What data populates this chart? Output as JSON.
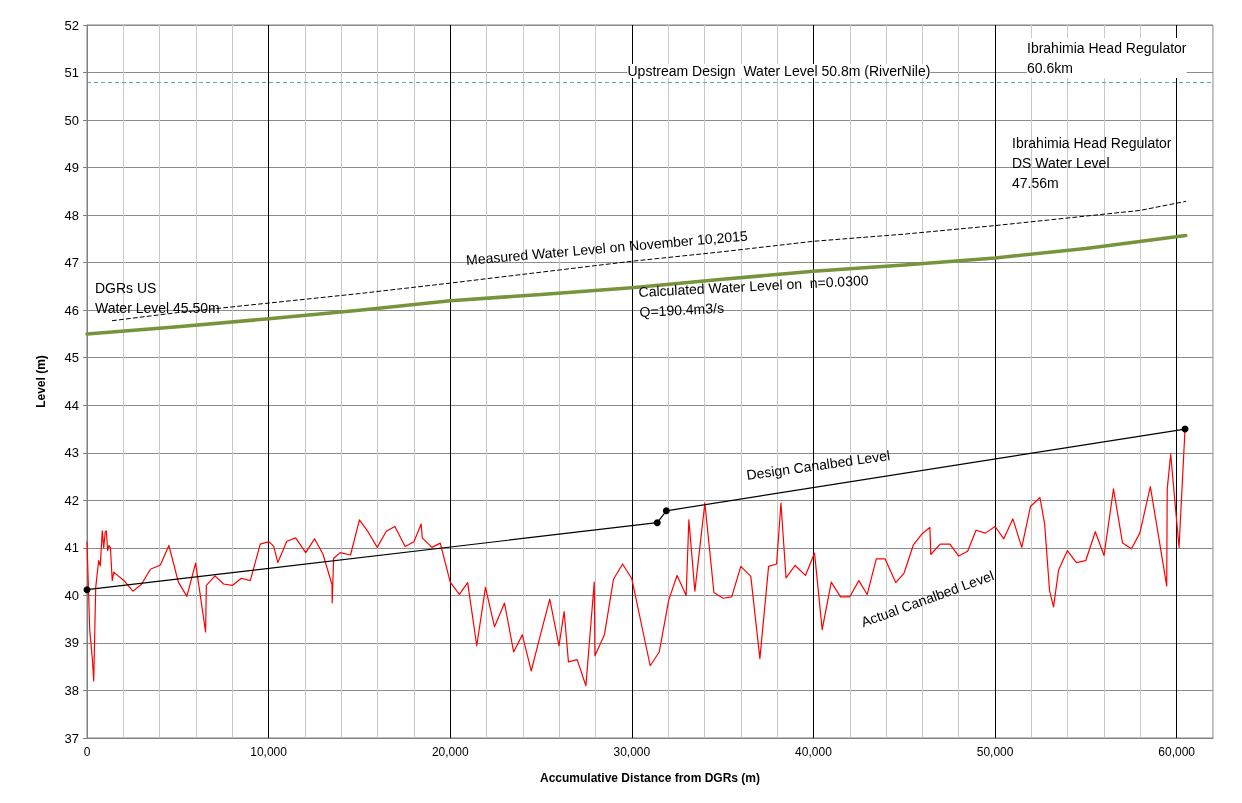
{
  "chart_data": {
    "type": "line",
    "xlabel": "Accumulative Distance from DGRs (m)",
    "ylabel": "Level (m)",
    "xlim": [
      0,
      62000
    ],
    "ylim": [
      37,
      52
    ],
    "xticks": [
      {
        "value": 0,
        "label": "0"
      },
      {
        "value": 2000,
        "label": null
      },
      {
        "value": 4000,
        "label": null
      },
      {
        "value": 6000,
        "label": null
      },
      {
        "value": 8000,
        "label": null
      },
      {
        "value": 10000,
        "label": "10,000"
      },
      {
        "value": 12000,
        "label": null
      },
      {
        "value": 14000,
        "label": null
      },
      {
        "value": 16000,
        "label": null
      },
      {
        "value": 18000,
        "label": null
      },
      {
        "value": 20000,
        "label": "20,000"
      },
      {
        "value": 22000,
        "label": null
      },
      {
        "value": 24000,
        "label": null
      },
      {
        "value": 26000,
        "label": null
      },
      {
        "value": 28000,
        "label": null
      },
      {
        "value": 30000,
        "label": "30,000"
      },
      {
        "value": 32000,
        "label": null
      },
      {
        "value": 34000,
        "label": null
      },
      {
        "value": 36000,
        "label": null
      },
      {
        "value": 38000,
        "label": null
      },
      {
        "value": 40000,
        "label": "40,000"
      },
      {
        "value": 42000,
        "label": null
      },
      {
        "value": 44000,
        "label": null
      },
      {
        "value": 46000,
        "label": null
      },
      {
        "value": 48000,
        "label": null
      },
      {
        "value": 50000,
        "label": "50,000"
      },
      {
        "value": 52000,
        "label": null
      },
      {
        "value": 54000,
        "label": null
      },
      {
        "value": 56000,
        "label": null
      },
      {
        "value": 58000,
        "label": null
      },
      {
        "value": 60000,
        "label": "60,000"
      },
      {
        "value": 62000,
        "label": null
      }
    ],
    "yticks": [
      37,
      38,
      39,
      40,
      41,
      42,
      43,
      44,
      45,
      46,
      47,
      48,
      49,
      50,
      51,
      52
    ],
    "grid": true,
    "series": [
      {
        "color": "#ff0000",
        "marker": "none",
        "line_style": "solid",
        "x": [
          0,
          150,
          300,
          370,
          480,
          640,
          730,
          840,
          920,
          1000,
          1060,
          1140,
          1210,
          1290,
          1390,
          1470,
          2040,
          2530,
          2990,
          3490,
          4040,
          4510,
          5030,
          5500,
          5980,
          6530,
          6570,
          7050,
          7520,
          8000,
          8500,
          8990,
          9540,
          10020,
          10280,
          10510,
          11000,
          11490,
          12040,
          12530,
          12990,
          13490,
          13500,
          13580,
          13940,
          14510,
          15000,
          15490,
          15980,
          16480,
          16950,
          17520,
          18000,
          18400,
          18460,
          18990,
          19450,
          20000,
          20500,
          20960,
          21460,
          21940,
          22440,
          22990,
          23490,
          23970,
          24460,
          24960,
          25480,
          25990,
          26270,
          26510,
          26990,
          27470,
          27930,
          27970,
          28490,
          28990,
          29490,
          30000,
          31010,
          31510,
          32030,
          32490,
          32990,
          33140,
          33470,
          34020,
          34520,
          35020,
          35500,
          36000,
          36550,
          37050,
          37530,
          37970,
          38210,
          38490,
          38990,
          39560,
          40060,
          40480,
          40980,
          41490,
          42000,
          42500,
          42960,
          43460,
          43940,
          44530,
          44990,
          45510,
          45970,
          46410,
          46460,
          46980,
          47510,
          47990,
          48490,
          48950,
          49470,
          50000,
          50480,
          50980,
          51470,
          51950,
          52470,
          52730,
          53000,
          53220,
          53500,
          53980,
          54480,
          54990,
          55520,
          56000,
          56520,
          57020,
          57510,
          57970,
          58550,
          59450,
          59480,
          59670,
          60130,
          60460
        ],
        "values": [
          41.12,
          39.27,
          38.64,
          38.2,
          40.17,
          40.73,
          40.62,
          41.36,
          41.0,
          41.33,
          41.36,
          40.94,
          41.05,
          41.0,
          40.31,
          40.49,
          40.31,
          40.09,
          40.23,
          40.55,
          40.64,
          41.05,
          40.28,
          39.98,
          40.68,
          39.23,
          40.21,
          40.41,
          40.24,
          40.21,
          40.36,
          40.31,
          41.08,
          41.13,
          41.03,
          40.69,
          41.14,
          41.21,
          40.9,
          41.19,
          40.87,
          40.23,
          39.84,
          40.78,
          40.9,
          40.85,
          41.59,
          41.33,
          41.01,
          41.35,
          41.45,
          41.03,
          41.13,
          41.5,
          41.21,
          41.01,
          41.1,
          40.28,
          40.02,
          40.27,
          38.94,
          40.17,
          39.34,
          39.84,
          38.81,
          39.17,
          38.41,
          39.16,
          39.92,
          38.94,
          39.66,
          38.6,
          38.65,
          38.1,
          40.28,
          38.73,
          39.17,
          40.34,
          40.66,
          40.35,
          38.52,
          38.81,
          39.9,
          40.42,
          40.0,
          41.59,
          40.09,
          41.94,
          40.06,
          39.94,
          39.97,
          40.61,
          40.4,
          38.67,
          40.61,
          40.66,
          41.94,
          40.37,
          40.63,
          40.42,
          40.89,
          39.28,
          40.28,
          39.97,
          39.97,
          40.31,
          40.02,
          40.77,
          40.77,
          40.27,
          40.47,
          41.07,
          41.29,
          41.43,
          40.86,
          41.08,
          41.08,
          40.83,
          40.93,
          41.37,
          41.31,
          41.45,
          41.19,
          41.61,
          41.01,
          41.87,
          42.06,
          41.5,
          40.1,
          39.76,
          40.54,
          40.94,
          40.69,
          40.73,
          41.34,
          40.84,
          42.24,
          41.1,
          40.98,
          41.31,
          42.29,
          40.2,
          42.24,
          42.97,
          41.01,
          43.5
        ]
      },
      {
        "color": "#000000",
        "marker": "circle",
        "line_style": "solid",
        "x": [
          0,
          31400,
          31900,
          60460
        ],
        "values": [
          40.12,
          41.53,
          41.78,
          43.5
        ]
      },
      {
        "color": "#000000",
        "marker": "none",
        "line_style": "dashed",
        "x": [
          1400,
          5000,
          10000,
          15000,
          20000,
          25000,
          30000,
          35000,
          40000,
          45000,
          50000,
          55000,
          58000,
          60500
        ],
        "values": [
          45.78,
          45.95,
          46.15,
          46.35,
          46.57,
          46.8,
          47.03,
          47.23,
          47.45,
          47.6,
          47.78,
          47.98,
          48.1,
          48.29
        ]
      },
      {
        "color": "#77933c",
        "marker": "none",
        "line_style": "solid",
        "x": [
          0,
          5000,
          10000,
          15000,
          20000,
          25000,
          30000,
          35000,
          40000,
          45000,
          50000,
          55000,
          60500
        ],
        "values": [
          45.5,
          45.65,
          45.82,
          46.0,
          46.2,
          46.33,
          46.47,
          46.65,
          46.82,
          46.95,
          47.1,
          47.3,
          47.57
        ]
      }
    ],
    "ref_lines": [
      {
        "axis": "y",
        "value": 50.8,
        "label": "Upstream Design  Water Level 50.8m (RiverNile)",
        "color": "#4bacc6",
        "line_style": "dashed"
      }
    ],
    "annotations": [
      "Ibrahimia Head Regulator\n60.6km",
      "Ibrahimia Head Regulator\nDS Water Level\n47.56m",
      "DGRs US\nWater Level 45.50m",
      "Measured Water Level on November 10,2015",
      "Calculated Water Level on  n=0.0300\nQ=190.4m3/s",
      "Design Canalbed Level",
      "Actual Canalbed Level"
    ]
  }
}
